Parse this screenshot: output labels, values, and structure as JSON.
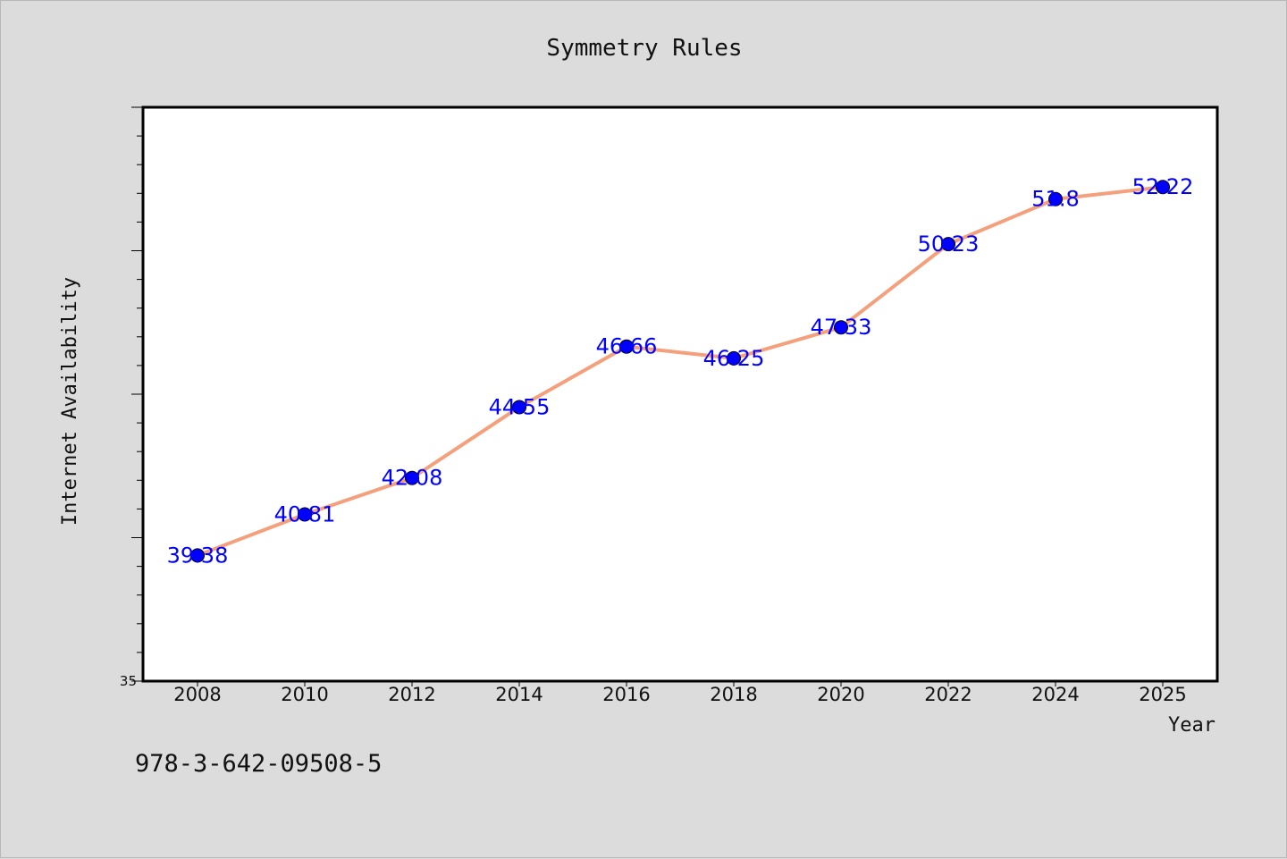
{
  "chart_data": {
    "type": "line",
    "title": "Symmetry Rules",
    "xlabel": "Year",
    "ylabel": "Internet Availability",
    "x": [
      "2008",
      "2010",
      "2012",
      "2014",
      "2016",
      "2018",
      "2020",
      "2022",
      "2024",
      "2025"
    ],
    "series": [
      {
        "values": [
          39.38,
          40.81,
          42.08,
          44.55,
          46.66,
          46.25,
          47.33,
          50.23,
          51.8,
          52.22
        ],
        "labels": [
          "39.38",
          "40.81",
          "42.08",
          "44.55",
          "46.66",
          "46.25",
          "47.33",
          "50.23",
          "51.8",
          "52.22"
        ],
        "line_color": "#f4a07c",
        "marker_color": "#0000ff"
      }
    ],
    "ylim": [
      35,
      55
    ],
    "yticks_labeled": [
      "35"
    ],
    "grid": false,
    "legend": "none"
  },
  "footer": {
    "isbn": "978-3-642-09508-5"
  }
}
